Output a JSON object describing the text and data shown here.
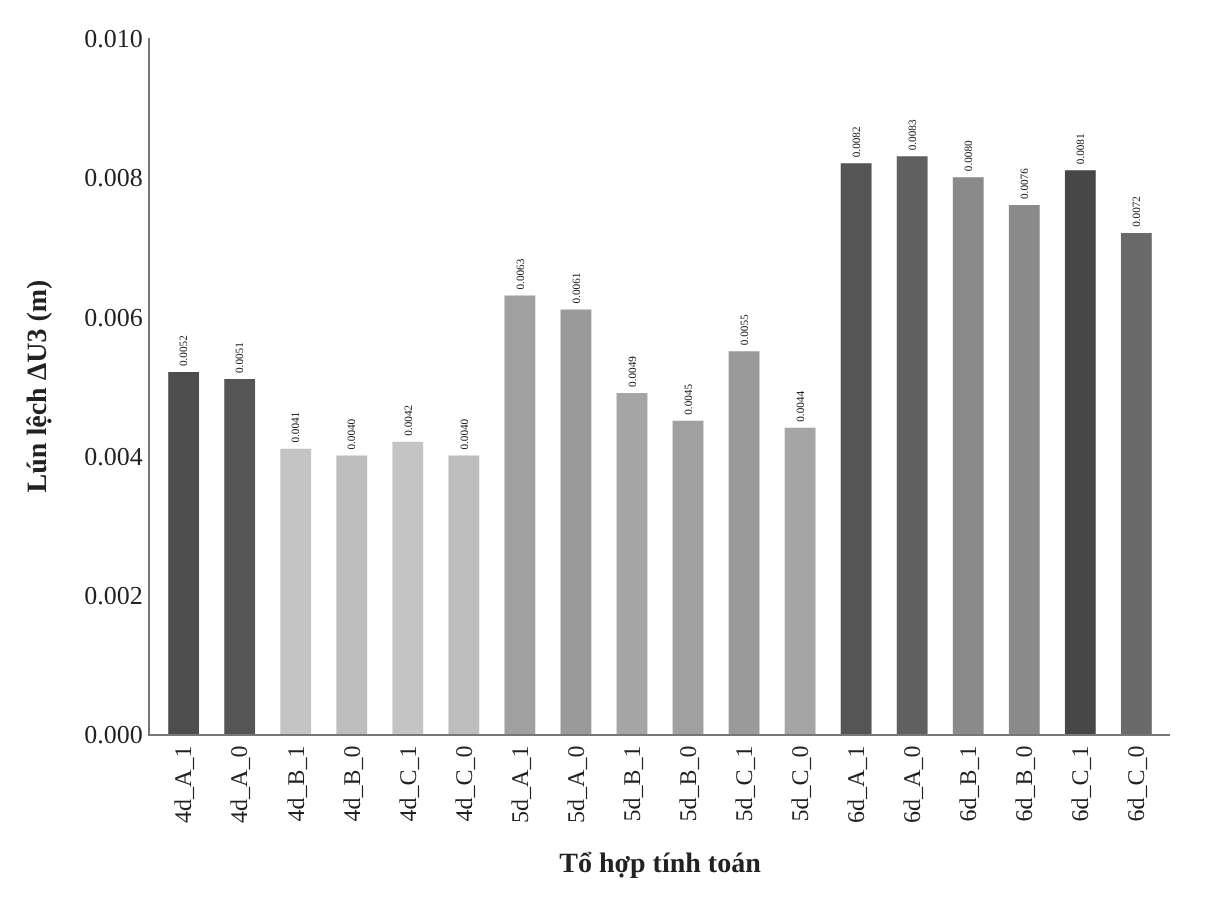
{
  "chart_data": {
    "type": "bar",
    "xlabel": "Tổ hợp tính toán",
    "ylabel": "Lún lệch ΔU3 (m)",
    "categories": [
      "4d_A_1",
      "4d_A_0",
      "4d_B_1",
      "4d_B_0",
      "4d_C_1",
      "4d_C_0",
      "5d_A_1",
      "5d_A_0",
      "5d_B_1",
      "5d_B_0",
      "5d_C_1",
      "5d_C_0",
      "6d_A_1",
      "6d_A_0",
      "6d_B_1",
      "6d_B_0",
      "6d_C_1",
      "6d_C_0"
    ],
    "values": [
      0.0052,
      0.0051,
      0.0041,
      0.004,
      0.0042,
      0.004,
      0.0063,
      0.0061,
      0.0049,
      0.0045,
      0.0055,
      0.0044,
      0.0082,
      0.0083,
      0.008,
      0.0076,
      0.0081,
      0.0072
    ],
    "value_labels": [
      "0.0052",
      "0.0051",
      "0.0041",
      "0.0040",
      "0.0042",
      "0.0040",
      "0.0063",
      "0.0061",
      "0.0049",
      "0.0045",
      "0.0055",
      "0.0044",
      "0.0082",
      "0.0083",
      "0.0080",
      "0.0076",
      "0.0081",
      "0.0072"
    ],
    "colors": [
      "#4d4d4d",
      "#555555",
      "#c4c4c4",
      "#bdbdbd",
      "#c4c4c4",
      "#bdbdbd",
      "#a0a0a0",
      "#9a9a9a",
      "#a5a5a5",
      "#a0a0a0",
      "#9a9a9a",
      "#a5a5a5",
      "#555555",
      "#606060",
      "#8a8a8a",
      "#8a8a8a",
      "#474747",
      "#6a6a6a"
    ],
    "ylim": [
      0,
      0.01
    ],
    "yticks": [
      {
        "value": 0,
        "label": "0.000"
      },
      {
        "value": 0.002,
        "label": "0.002"
      },
      {
        "value": 0.004,
        "label": "0.004"
      },
      {
        "value": 0.006,
        "label": "0.006"
      },
      {
        "value": 0.008,
        "label": "0.008"
      },
      {
        "value": 0.01,
        "label": "0.010"
      }
    ]
  }
}
